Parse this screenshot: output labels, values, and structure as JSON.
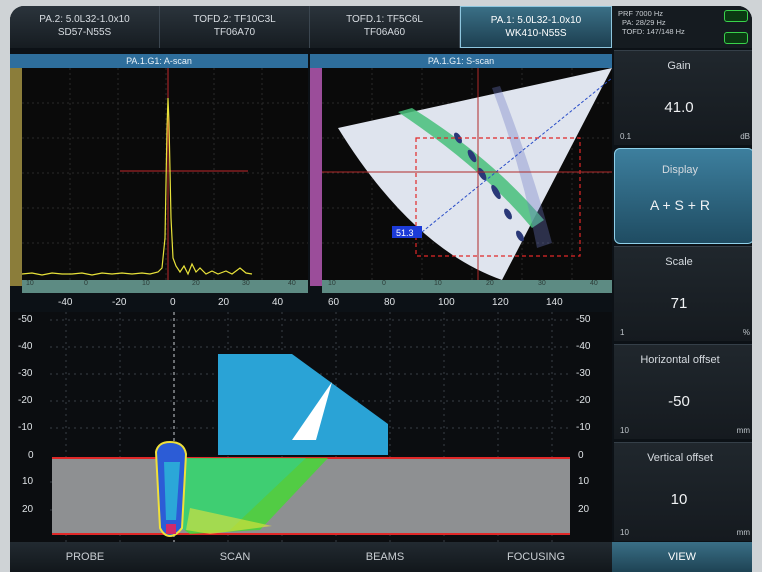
{
  "tabs": [
    {
      "line1": "PA.2: 5.0L32-1.0x10",
      "line2": "SD57-N55S"
    },
    {
      "line1": "TOFD.2: TF10C3L",
      "line2": "TF06A70"
    },
    {
      "line1": "TOFD.1: TF5C6L",
      "line2": "TF06A60"
    },
    {
      "line1": "PA.1: 5.0L32-1.0x10",
      "line2": "WK410-N55S"
    }
  ],
  "status": {
    "prf": "PRF 7000 Hz",
    "pa": "PA: 28/29 Hz",
    "tofd": "TOFD: 147/148 Hz"
  },
  "ascan": {
    "title": "PA.1.G1: A-scan",
    "ticks": [
      "10",
      "0",
      "10",
      "20",
      "30",
      "40"
    ]
  },
  "sscan": {
    "title": "PA.1.G1: S-scan",
    "ticks": [
      "10",
      "0",
      "10",
      "20",
      "30",
      "40"
    ],
    "cursor": "51.3"
  },
  "xaxis": [
    "-40",
    "-20",
    "0",
    "20",
    "40",
    "60",
    "80",
    "100",
    "120",
    "140"
  ],
  "yaxis_left": [
    "-50",
    "-40",
    "-30",
    "-20",
    "-10",
    "0",
    "10",
    "20"
  ],
  "yaxis_right": [
    "-50",
    "-40",
    "-30",
    "-20",
    "-10",
    "0",
    "10",
    "20"
  ],
  "controls": {
    "gain": {
      "label": "Gain",
      "value": "41.0",
      "min": "0.1",
      "unit": "dB"
    },
    "display": {
      "label": "Display",
      "value": "A + S + R"
    },
    "scale": {
      "label": "Scale",
      "value": "71",
      "min": "1",
      "unit": "%"
    },
    "hoffset": {
      "label": "Horizontal offset",
      "value": "-50",
      "min": "10",
      "unit": "mm"
    },
    "voffset": {
      "label": "Vertical offset",
      "value": "10",
      "min": "10",
      "unit": "mm"
    }
  },
  "menu": [
    "PROBE",
    "SCAN",
    "BEAMS",
    "FOCUSING",
    "VIEW"
  ]
}
